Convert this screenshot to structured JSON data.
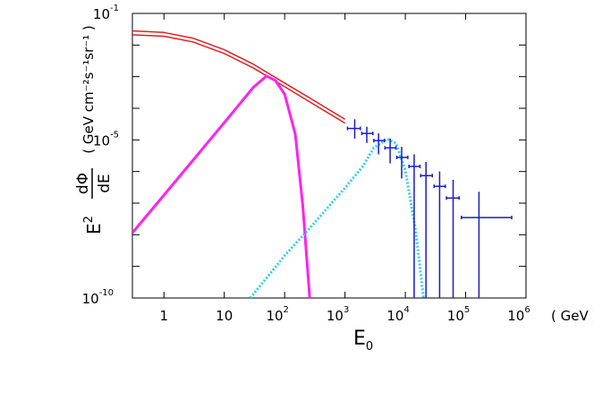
{
  "chart_data": {
    "type": "line",
    "xscale": "log",
    "yscale": "log",
    "xlim": [
      0.3,
      1000000
    ],
    "ylim": [
      1e-10,
      0.1
    ],
    "xticks": [
      1,
      10,
      {
        "value": 100,
        "label": "10",
        "exponent": "2"
      },
      {
        "value": 1000,
        "label": "10",
        "exponent": "3"
      },
      {
        "value": 10000,
        "label": "10",
        "exponent": "4"
      },
      {
        "value": 100000,
        "label": "10",
        "exponent": "5"
      },
      {
        "value": 1000000,
        "label": "10",
        "exponent": "6"
      }
    ],
    "yticks": [
      {
        "value": 0.1,
        "label": "10",
        "exponent": "-1"
      },
      {
        "value": 1e-05,
        "label": "10",
        "exponent": "-5"
      },
      {
        "value": 1e-10,
        "label": "10",
        "exponent": "-10"
      }
    ],
    "yminor_ticks": [
      0.01,
      0.001,
      0.0001,
      1e-06,
      1e-07,
      1e-08,
      1e-09
    ],
    "x_label": {
      "text": "E",
      "subscript": "0"
    },
    "x_unit": "( GeV )",
    "y_label": {
      "base": "E",
      "power": "2",
      "numerator": "dΦ",
      "denominator": "dE",
      "units": "( GeV cm⁻²s⁻¹sr⁻¹ )"
    },
    "series": [
      {
        "color": "#e02020",
        "style": "solid",
        "width": 1.5,
        "x": [
          0.3,
          1,
          3,
          10,
          30,
          100,
          300,
          1000
        ],
        "values": [
          0.028,
          0.025,
          0.0166,
          0.0071,
          0.0025,
          0.00063,
          0.00018,
          4.5e-05
        ]
      },
      {
        "color": "#e02020",
        "style": "solid",
        "width": 1.5,
        "x": [
          0.3,
          1,
          3,
          10,
          30,
          100,
          300,
          1000
        ],
        "values": [
          0.021,
          0.019,
          0.0126,
          0.0054,
          0.0019,
          0.00048,
          0.000135,
          3.4e-05
        ]
      },
      {
        "color": "#ff22ee",
        "style": "solid",
        "width": 3,
        "x": [
          0.3,
          1,
          10,
          30,
          50,
          70,
          100,
          150,
          200,
          260
        ],
        "values": [
          1.15e-08,
          1.8e-07,
          3.5e-05,
          0.00045,
          0.00105,
          0.00076,
          0.00028,
          1.5e-05,
          8e-08,
          1e-10
        ]
      },
      {
        "color": "#33ccee",
        "style": "dotted",
        "width": 3,
        "x": [
          27,
          100,
          300,
          1000,
          2000,
          3000,
          5000,
          7000,
          10000,
          15000,
          20000
        ],
        "values": [
          1e-10,
          2.2e-09,
          2.2e-08,
          3e-07,
          1.5e-06,
          5.6e-06,
          1.07e-05,
          7.9e-06,
          1.1e-06,
          1.15e-08,
          1e-10
        ]
      },
      {
        "color": "#1a1acc",
        "style": "errorbar",
        "width": 1.5,
        "x": [
          1450,
          2300,
          3600,
          5600,
          8700,
          14000,
          22000,
          37000,
          62000,
          166000
        ],
        "values": [
          2.3e-05,
          1.6e-05,
          9.5e-06,
          5.6e-06,
          2.8e-06,
          1.45e-06,
          7.4e-07,
          3.4e-07,
          1.45e-07,
          3.5e-08
        ],
        "y_low": [
          1.1e-05,
          8e-06,
          3.5e-06,
          1.8e-06,
          6e-07,
          1e-10,
          1e-10,
          1e-10,
          1e-10,
          1e-10
        ],
        "y_high": [
          4.5e-05,
          2.6e-05,
          1.6e-05,
          1.1e-05,
          6e-06,
          3.5e-06,
          2e-06,
          1e-06,
          5.5e-07,
          2.3e-07
        ],
        "x_low": [
          1100,
          1900,
          3000,
          4600,
          7200,
          11500,
          18000,
          30000,
          48000,
          85000
        ],
        "x_high": [
          1800,
          2900,
          4500,
          7000,
          11000,
          17500,
          28000,
          46000,
          78000,
          580000
        ]
      }
    ]
  }
}
